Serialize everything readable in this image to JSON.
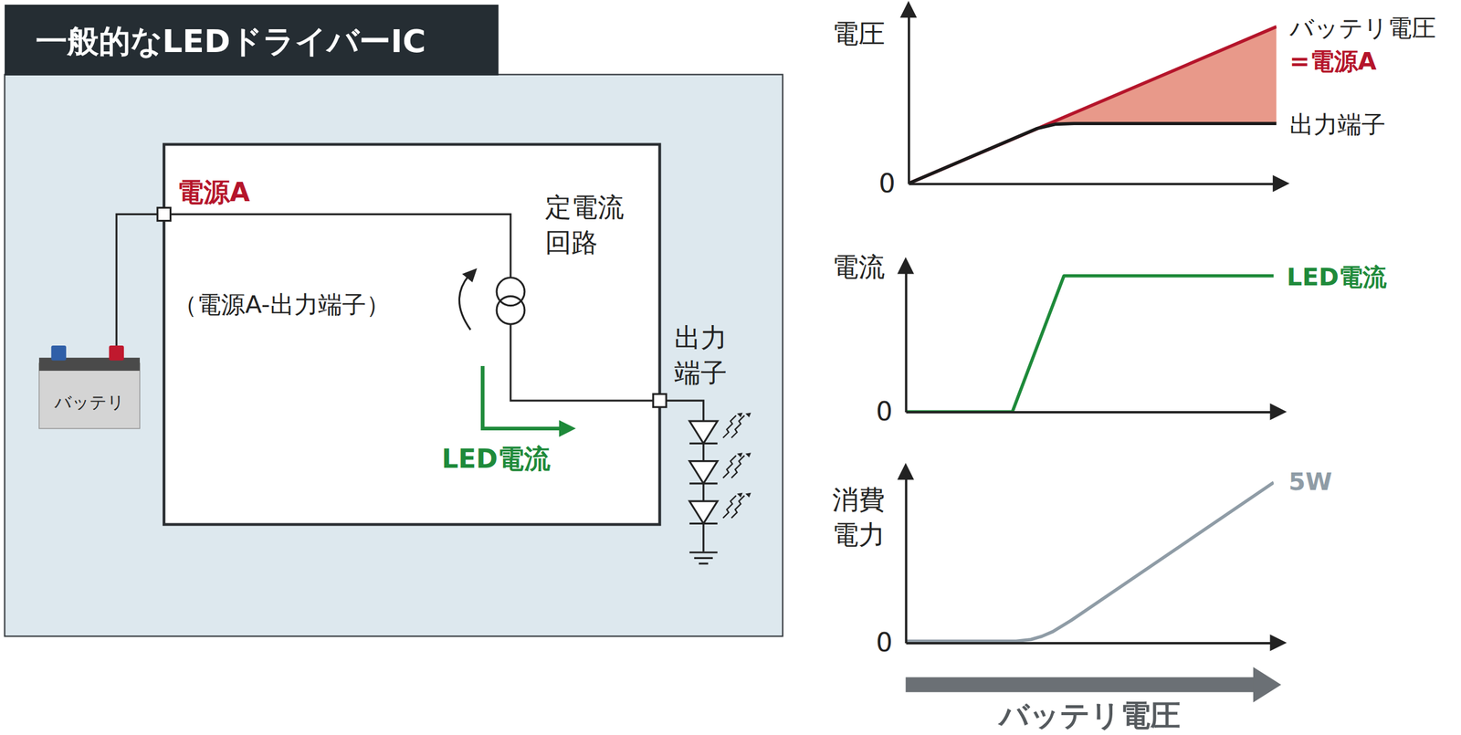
{
  "diagram": {
    "title": "一般的なLEDドライバーIC",
    "power_label": "電源A",
    "current_source_label": [
      "定電流",
      "回路"
    ],
    "voltage_label": "（電源A-出力端子）",
    "current_label": "LED電流",
    "output_label": [
      "出力",
      "端子"
    ],
    "battery_label": "バッテリ"
  },
  "chart_data": [
    {
      "type": "line",
      "ylabel": "電圧",
      "xlim": [
        0,
        10
      ],
      "ylim": [
        0,
        12
      ],
      "xticks": [],
      "yticks": [
        0
      ],
      "tick_labels": "y",
      "annotations": [
        {
          "text": "=電源A",
          "color": "#b5152b"
        }
      ],
      "series": [
        {
          "name": "バッテリ電圧",
          "color": "#b5152b",
          "x": [
            0,
            10
          ],
          "values": [
            0,
            11.1
          ]
        },
        {
          "name": "出力端子",
          "color": "#1a1a1a",
          "x": [
            0,
            3.5,
            4,
            4.5,
            10
          ],
          "values": [
            0,
            3.9,
            4.2,
            4.25,
            4.25
          ]
        }
      ]
    },
    {
      "type": "line",
      "ylabel": "電流",
      "xlim": [
        0,
        10
      ],
      "ylim": [
        0,
        10
      ],
      "xticks": [],
      "yticks": [
        0
      ],
      "tick_labels": "y",
      "series": [
        {
          "name": "LED電流",
          "color": "#1e8a3a",
          "x": [
            0,
            2.9,
            4.3,
            10
          ],
          "values": [
            0,
            0,
            9.6,
            9.6
          ]
        }
      ]
    },
    {
      "type": "line",
      "ylabel": [
        "消費",
        "電力"
      ],
      "xlabel": "バッテリ電圧",
      "xlim": [
        0,
        10
      ],
      "ylim": [
        0,
        5.2
      ],
      "xticks": [],
      "yticks": [
        0
      ],
      "tick_labels": "y",
      "annotations": [
        {
          "text": "5W",
          "x": 10,
          "y": 5,
          "color": "#8f9ca6"
        }
      ],
      "series": [
        {
          "color": "#8f9ca6",
          "x": [
            0,
            3,
            3.4,
            3.7,
            4,
            4.5,
            10
          ],
          "values": [
            0.05,
            0.05,
            0.1,
            0.2,
            0.35,
            0.7,
            5
          ]
        }
      ]
    }
  ]
}
